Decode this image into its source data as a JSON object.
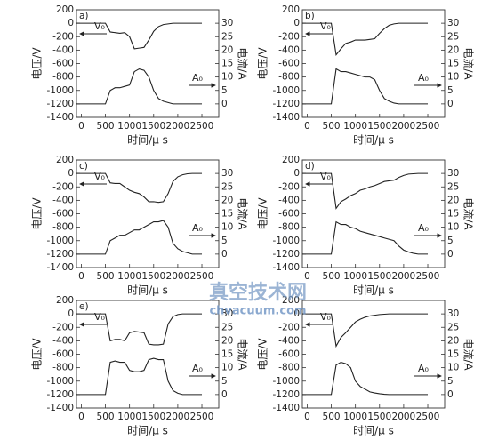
{
  "chart_data": [
    {
      "type": "line",
      "panel_label": "a)",
      "y_label": "电压/V",
      "y2_label": "电流/A",
      "x_label": "时间/μ s",
      "annotations": [
        "V₀",
        "A₀"
      ],
      "x": [
        -100,
        0,
        100,
        200,
        300,
        400,
        500,
        600,
        700,
        800,
        900,
        1000,
        1100,
        1200,
        1300,
        1400,
        1500,
        1600,
        1700,
        1800,
        1900,
        2000,
        2100,
        2200,
        2300,
        2400,
        2500
      ],
      "series": [
        {
          "color": "#222222",
          "axis": "y",
          "values": [
            0,
            0,
            0,
            0,
            0,
            0,
            0,
            -130,
            -140,
            -150,
            -140,
            -200,
            -380,
            -370,
            -360,
            -250,
            -120,
            -50,
            -20,
            -10,
            0,
            0,
            0,
            0,
            0,
            0,
            0
          ]
        },
        {
          "color": "#222222",
          "axis": "y2",
          "values": [
            0,
            0,
            0,
            0,
            0,
            0,
            0,
            5,
            6,
            6,
            6.5,
            7,
            12,
            13,
            12.5,
            10,
            5,
            2,
            1,
            0.5,
            0,
            0,
            0,
            0,
            0,
            0,
            0
          ]
        }
      ],
      "xlim": [
        -100,
        2850
      ],
      "xticks": [
        0,
        500,
        1000,
        1500,
        2000,
        2500
      ],
      "ylim": [
        -1400,
        200
      ],
      "yticks": [
        -1400,
        -1200,
        -1000,
        -800,
        -600,
        -400,
        -200,
        0,
        200
      ],
      "y2lim": [
        -5,
        35
      ],
      "y2ticks": [
        0,
        5,
        10,
        15,
        20,
        25,
        30
      ]
    },
    {
      "type": "line",
      "panel_label": "b)",
      "y_label": "电压/V",
      "y2_label": "电流/A",
      "x_label": "时间/μ s",
      "annotations": [
        "V₀",
        "A₀"
      ],
      "x": [
        -100,
        0,
        100,
        200,
        300,
        400,
        500,
        600,
        700,
        800,
        900,
        1000,
        1100,
        1200,
        1300,
        1400,
        1500,
        1600,
        1700,
        1800,
        1900,
        2000,
        2100,
        2200,
        2300,
        2400,
        2500
      ],
      "series": [
        {
          "color": "#222222",
          "axis": "y",
          "values": [
            0,
            0,
            0,
            0,
            0,
            0,
            0,
            -470,
            -380,
            -300,
            -280,
            -250,
            -250,
            -250,
            -240,
            -230,
            -150,
            -80,
            -30,
            -10,
            0,
            0,
            0,
            0,
            0,
            0,
            0
          ]
        },
        {
          "color": "#222222",
          "axis": "y2",
          "values": [
            0,
            0,
            0,
            0,
            0,
            0,
            0,
            13,
            12,
            12,
            11.5,
            11,
            10.5,
            10,
            10,
            9,
            5,
            2,
            1,
            0.3,
            0,
            0,
            0,
            0,
            0,
            0,
            0
          ]
        }
      ],
      "xlim": [
        -100,
        2850
      ],
      "xticks": [
        0,
        500,
        1000,
        1500,
        2000,
        2500
      ],
      "ylim": [
        -1400,
        200
      ],
      "yticks": [
        -1400,
        -1200,
        -1000,
        -800,
        -600,
        -400,
        -200,
        0,
        200
      ],
      "y2lim": [
        -5,
        35
      ],
      "y2ticks": [
        0,
        5,
        10,
        15,
        20,
        25,
        30
      ]
    },
    {
      "type": "line",
      "panel_label": "c)",
      "y_label": "电压/V",
      "y2_label": "电流/A",
      "x_label": "时间/μ s",
      "annotations": [
        "V₀",
        "A₀"
      ],
      "x": [
        -100,
        0,
        100,
        200,
        300,
        400,
        500,
        600,
        700,
        800,
        900,
        1000,
        1100,
        1200,
        1300,
        1400,
        1500,
        1600,
        1700,
        1800,
        1900,
        2000,
        2100,
        2200,
        2300,
        2400,
        2500
      ],
      "series": [
        {
          "color": "#222222",
          "axis": "y",
          "values": [
            0,
            0,
            0,
            0,
            0,
            0,
            0,
            -140,
            -150,
            -150,
            -200,
            -250,
            -280,
            -300,
            -350,
            -420,
            -420,
            -430,
            -420,
            -300,
            -120,
            -50,
            -20,
            -5,
            0,
            0,
            0
          ]
        },
        {
          "color": "#222222",
          "axis": "y2",
          "values": [
            0,
            0,
            0,
            0,
            0,
            0,
            0,
            5,
            6,
            7,
            7,
            8,
            9,
            9,
            10,
            11,
            12,
            12,
            12.5,
            10,
            4,
            2,
            1,
            0.5,
            0,
            0,
            0
          ]
        }
      ],
      "xlim": [
        -100,
        2850
      ],
      "xticks": [
        0,
        500,
        1000,
        1500,
        2000,
        2500
      ],
      "ylim": [
        -1400,
        200
      ],
      "yticks": [
        -1400,
        -1200,
        -1000,
        -800,
        -600,
        -400,
        -200,
        0,
        200
      ],
      "y2lim": [
        -5,
        35
      ],
      "y2ticks": [
        0,
        5,
        10,
        15,
        20,
        25,
        30
      ]
    },
    {
      "type": "line",
      "panel_label": "d)",
      "y_label": "电压/V",
      "y2_label": "电流/A",
      "x_label": "时间/μ s",
      "annotations": [
        "V₀",
        "A₀"
      ],
      "x": [
        -100,
        0,
        100,
        200,
        300,
        400,
        500,
        600,
        700,
        800,
        900,
        1000,
        1100,
        1200,
        1300,
        1400,
        1500,
        1600,
        1700,
        1800,
        1900,
        2000,
        2100,
        2200,
        2300,
        2400,
        2500
      ],
      "series": [
        {
          "color": "#222222",
          "axis": "y",
          "values": [
            0,
            0,
            0,
            0,
            0,
            0,
            0,
            -520,
            -420,
            -380,
            -330,
            -300,
            -250,
            -230,
            -200,
            -180,
            -150,
            -120,
            -110,
            -100,
            -60,
            -30,
            -10,
            -5,
            0,
            0,
            0
          ]
        },
        {
          "color": "#222222",
          "axis": "y2",
          "values": [
            0,
            0,
            0,
            0,
            0,
            0,
            0,
            12,
            11,
            11,
            10,
            9.5,
            8.5,
            8,
            7.5,
            7,
            6.5,
            6,
            5.5,
            5,
            3,
            1.5,
            0.8,
            0.3,
            0,
            0,
            0
          ]
        }
      ],
      "xlim": [
        -100,
        2850
      ],
      "xticks": [
        0,
        500,
        1000,
        1500,
        2000,
        2500
      ],
      "ylim": [
        -1400,
        200
      ],
      "yticks": [
        -1400,
        -1200,
        -1000,
        -800,
        -600,
        -400,
        -200,
        0,
        200
      ],
      "y2lim": [
        -5,
        35
      ],
      "y2ticks": [
        0,
        5,
        10,
        15,
        20,
        25,
        30
      ]
    },
    {
      "type": "line",
      "panel_label": "e)",
      "y_label": "电压/V",
      "y2_label": "电流/A",
      "x_label": "时间/μ s",
      "annotations": [
        "V₀",
        "A₀"
      ],
      "x": [
        -100,
        0,
        100,
        200,
        300,
        400,
        500,
        600,
        700,
        800,
        900,
        1000,
        1100,
        1200,
        1300,
        1400,
        1500,
        1600,
        1700,
        1800,
        1900,
        2000,
        2100,
        2200,
        2300,
        2400,
        2500
      ],
      "series": [
        {
          "color": "#222222",
          "axis": "y",
          "values": [
            0,
            0,
            0,
            0,
            0,
            0,
            0,
            -400,
            -380,
            -380,
            -400,
            -280,
            -260,
            -270,
            -280,
            -450,
            -460,
            -460,
            -450,
            -150,
            -40,
            -10,
            0,
            0,
            0,
            0,
            0
          ]
        },
        {
          "color": "#222222",
          "axis": "y2",
          "values": [
            0,
            0,
            0,
            0,
            0,
            0,
            0,
            12,
            12.5,
            12,
            12,
            9,
            8.5,
            8.5,
            9,
            13,
            13.5,
            13,
            13,
            5,
            1.5,
            0.5,
            0,
            0,
            0,
            0,
            0
          ]
        }
      ],
      "xlim": [
        -100,
        2850
      ],
      "xticks": [
        0,
        500,
        1000,
        1500,
        2000,
        2500
      ],
      "ylim": [
        -1400,
        200
      ],
      "yticks": [
        -1400,
        -1200,
        -1000,
        -800,
        -600,
        -400,
        -200,
        0,
        200
      ],
      "y2lim": [
        -5,
        35
      ],
      "y2ticks": [
        0,
        5,
        10,
        15,
        20,
        25,
        30
      ]
    },
    {
      "type": "line",
      "y_label": "电压/V",
      "y2_label": "电流/A",
      "x_label": "时间/μ s",
      "annotations": [
        "V₀",
        "A₀"
      ],
      "x": [
        -100,
        0,
        100,
        200,
        300,
        400,
        500,
        600,
        700,
        800,
        900,
        1000,
        1100,
        1200,
        1300,
        1400,
        1500,
        1600,
        1700,
        1800,
        1900,
        2000,
        2100,
        2200,
        2300,
        2400,
        2500
      ],
      "series": [
        {
          "color": "#222222",
          "axis": "y",
          "values": [
            0,
            0,
            0,
            0,
            0,
            0,
            0,
            -480,
            -350,
            -280,
            -200,
            -120,
            -80,
            -50,
            -30,
            -20,
            -10,
            -5,
            0,
            0,
            0,
            0,
            0,
            0,
            0,
            0,
            0
          ]
        },
        {
          "color": "#222222",
          "axis": "y2",
          "values": [
            0,
            0,
            0,
            0,
            0,
            0,
            0,
            11,
            12,
            11.5,
            10,
            5,
            3,
            2,
            1,
            0.6,
            0.3,
            0.1,
            0,
            0,
            0,
            0,
            0,
            0,
            0,
            0,
            0
          ]
        }
      ],
      "xlim": [
        -100,
        2850
      ],
      "xticks": [
        0,
        500,
        1000,
        1500,
        2000,
        2500
      ],
      "ylim": [
        -1400,
        200
      ],
      "yticks": [
        -1400,
        -1200,
        -1000,
        -800,
        -600,
        -400,
        -200,
        0,
        200
      ],
      "y2lim": [
        -5,
        35
      ],
      "y2ticks": [
        0,
        5,
        10,
        15,
        20,
        25,
        30
      ]
    }
  ],
  "watermark": {
    "title": "真空技术网",
    "url": "chvacuum.com"
  }
}
